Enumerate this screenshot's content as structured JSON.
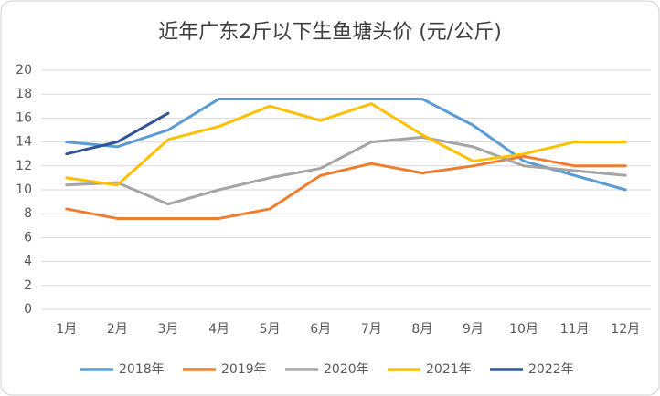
{
  "chart_data": {
    "type": "line",
    "title": "近年广东2斤以下生鱼塘头价 (元/公斤)",
    "categories": [
      "1月",
      "2月",
      "3月",
      "4月",
      "5月",
      "6月",
      "7月",
      "8月",
      "9月",
      "10月",
      "11月",
      "12月"
    ],
    "series": [
      {
        "name": "2018年",
        "color": "#5b9bd5",
        "values": [
          14,
          13.6,
          15,
          17.6,
          17.6,
          17.6,
          17.6,
          17.6,
          15.4,
          12.4,
          11.2,
          10
        ]
      },
      {
        "name": "2019年",
        "color": "#ed7d31",
        "values": [
          8.4,
          7.6,
          7.6,
          7.6,
          8.4,
          11.2,
          12.2,
          11.4,
          12,
          12.8,
          12,
          12
        ]
      },
      {
        "name": "2020年",
        "color": "#a5a5a5",
        "values": [
          10.4,
          10.6,
          8.8,
          10,
          11,
          11.8,
          14,
          14.4,
          13.6,
          12,
          11.6,
          11.2
        ]
      },
      {
        "name": "2021年",
        "color": "#ffc000",
        "values": [
          11,
          10.4,
          14.2,
          15.3,
          17,
          15.8,
          17.2,
          14.6,
          12.4,
          13,
          14,
          14
        ]
      },
      {
        "name": "2022年",
        "color": "#2f5597",
        "values": [
          13,
          14,
          16.4,
          null,
          null,
          null,
          null,
          null,
          null,
          null,
          null,
          null
        ]
      }
    ],
    "ylim": [
      0,
      20
    ],
    "yticks": [
      0,
      2,
      4,
      6,
      8,
      10,
      12,
      14,
      16,
      18,
      20
    ],
    "grid": true,
    "legend": "bottom"
  }
}
